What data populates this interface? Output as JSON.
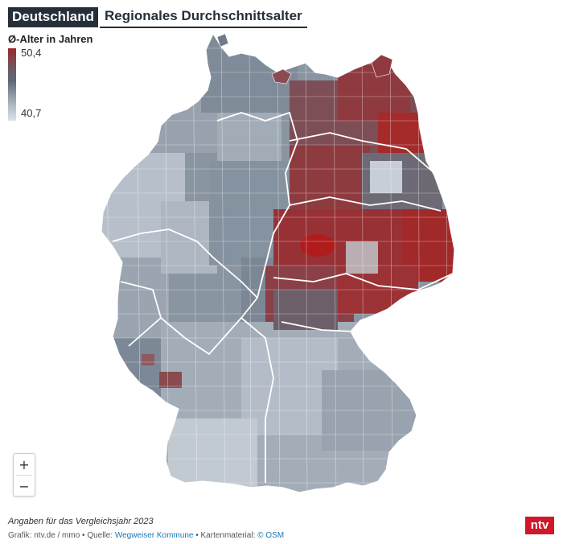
{
  "header": {
    "tag": "Deutschland",
    "title": "Regionales Durchschnittsalter"
  },
  "legend": {
    "title": "Ø-Alter in Jahren",
    "max": "50,4",
    "min": "40,7"
  },
  "map_colors": {
    "high": "#9b2a2a",
    "mid": "#5c6977",
    "low": "#dde2e7",
    "border": "#ffffff"
  },
  "zoom": {
    "in_label": "+",
    "out_label": "−"
  },
  "footer": {
    "note": "Angaben für das Vergleichsjahr 2023",
    "credit_prefix": "Grafik: ntv.de / mmo • Quelle: ",
    "source_link": "Wegweiser Kommune",
    "credit_mid": " • Kartenmaterial: ",
    "osm_link": "© OSM",
    "logo": "ntv"
  }
}
